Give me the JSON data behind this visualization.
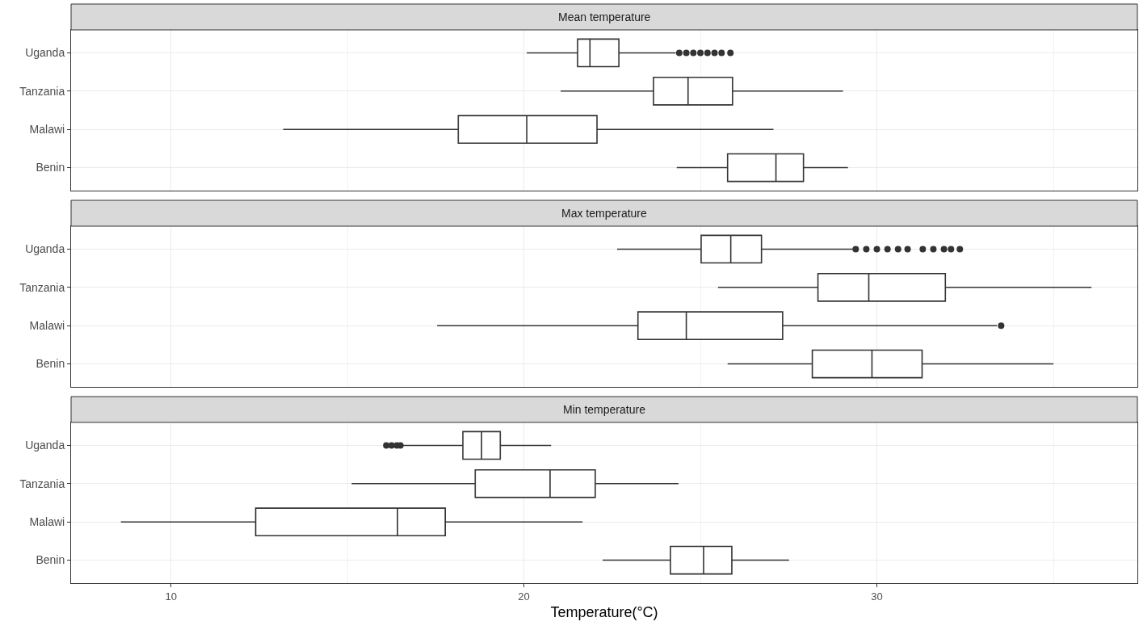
{
  "chart_data": [
    {
      "type": "box",
      "title": "Mean temperature",
      "orientation": "horizontal",
      "categories": [
        "Uganda",
        "Tanzania",
        "Malawi",
        "Benin"
      ],
      "xlim": [
        7.17,
        37.38
      ],
      "xticks": [
        10,
        {
          "value": 15,
          "label": null
        },
        20,
        {
          "value": 25,
          "label": null
        },
        30,
        {
          "value": 35,
          "label": null
        }
      ],
      "grid": true,
      "marker": "circle",
      "tick_labels": "y",
      "series": [
        {
          "color": "#333333",
          "boxes": [
            {
              "low": 20.08,
              "q1": 21.52,
              "median": 21.87,
              "q3": 22.69,
              "high": 24.3,
              "outliers": [
                24.4,
                24.6,
                24.8,
                25.0,
                25.2,
                25.4,
                25.6,
                25.85
              ]
            },
            {
              "low": 21.04,
              "q1": 23.67,
              "median": 24.65,
              "q3": 25.91,
              "high": 29.04
            },
            {
              "low": 13.18,
              "q1": 18.14,
              "median": 20.08,
              "q3": 22.07,
              "high": 27.07
            },
            {
              "low": 24.33,
              "q1": 25.77,
              "median": 27.14,
              "q3": 27.92,
              "high": 29.18
            }
          ]
        }
      ]
    },
    {
      "type": "box",
      "title": "Max temperature",
      "orientation": "horizontal",
      "categories": [
        "Uganda",
        "Tanzania",
        "Malawi",
        "Benin"
      ],
      "xlim": [
        7.17,
        37.38
      ],
      "xticks": [
        10,
        {
          "value": 15,
          "label": null
        },
        20,
        {
          "value": 25,
          "label": null
        },
        30,
        {
          "value": 35,
          "label": null
        }
      ],
      "grid": true,
      "marker": "circle",
      "tick_labels": "y",
      "series": [
        {
          "color": "#333333",
          "boxes": [
            {
              "low": 22.64,
              "q1": 25.02,
              "median": 25.86,
              "q3": 26.73,
              "high": 29.34,
              "outliers": [
                29.4,
                29.7,
                30.0,
                30.3,
                30.6,
                30.87,
                31.3,
                31.6,
                31.9,
                32.1,
                32.35
              ]
            },
            {
              "low": 25.5,
              "q1": 28.33,
              "median": 29.77,
              "q3": 31.94,
              "high": 36.08
            },
            {
              "low": 17.54,
              "q1": 23.23,
              "median": 24.6,
              "q3": 27.33,
              "high": 33.4,
              "outliers": [
                33.52
              ]
            },
            {
              "low": 25.77,
              "q1": 28.17,
              "median": 29.86,
              "q3": 31.28,
              "high": 35.0
            }
          ]
        }
      ]
    },
    {
      "type": "box",
      "title": "Min temperature",
      "orientation": "horizontal",
      "categories": [
        "Uganda",
        "Tanzania",
        "Malawi",
        "Benin"
      ],
      "xlim": [
        7.17,
        37.38
      ],
      "xticks": [
        10,
        {
          "value": 15,
          "label": null
        },
        20,
        {
          "value": 25,
          "label": null
        },
        30,
        {
          "value": 35,
          "label": null
        }
      ],
      "grid": true,
      "marker": "circle",
      "xlabel": "Temperature(°C)",
      "series": [
        {
          "color": "#333333",
          "boxes": [
            {
              "low": 16.58,
              "q1": 18.27,
              "median": 18.8,
              "q3": 19.33,
              "high": 20.77,
              "outliers": [
                16.1,
                16.25,
                16.4,
                16.5
              ]
            },
            {
              "low": 15.12,
              "q1": 18.62,
              "median": 20.74,
              "q3": 22.02,
              "high": 24.38
            },
            {
              "low": 8.58,
              "q1": 12.4,
              "median": 16.42,
              "q3": 17.77,
              "high": 21.66
            },
            {
              "low": 22.23,
              "q1": 24.15,
              "median": 25.09,
              "q3": 25.89,
              "high": 27.51
            }
          ]
        }
      ]
    }
  ]
}
